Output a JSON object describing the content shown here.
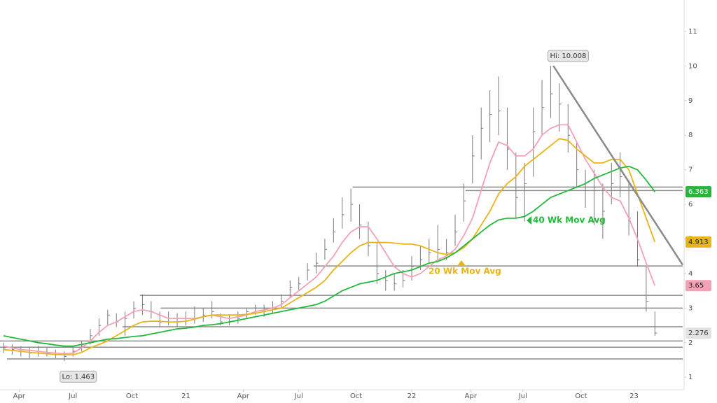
{
  "chart_data": {
    "type": "ohlc",
    "xlim": [
      -0.4,
      78.2
    ],
    "xticks": [
      {
        "value": 1.8,
        "label": "Apr"
      },
      {
        "value": 8,
        "label": "Jul"
      },
      {
        "value": 14.8,
        "label": "Oct"
      },
      {
        "value": 21,
        "label": "21"
      },
      {
        "value": 27.6,
        "label": "Apr"
      },
      {
        "value": 34,
        "label": "Jul"
      },
      {
        "value": 40.6,
        "label": "Oct"
      },
      {
        "value": 47,
        "label": "22"
      },
      {
        "value": 53.8,
        "label": "Apr"
      },
      {
        "value": 59.8,
        "label": "Jul"
      },
      {
        "value": 66.5,
        "label": "Oct"
      },
      {
        "value": 72.6,
        "label": "23"
      }
    ],
    "ylim": [
      0.64,
      11.91
    ],
    "yticks": [
      1,
      2,
      3,
      4,
      5,
      6,
      7,
      8,
      9,
      10,
      11
    ],
    "bar_color": "#7a7a7a",
    "high": [
      2.0,
      1.95,
      1.9,
      1.85,
      1.9,
      1.85,
      1.8,
      1.75,
      1.85,
      2.05,
      2.4,
      2.7,
      2.95,
      2.85,
      2.9,
      3.2,
      3.4,
      3.2,
      2.9,
      2.9,
      2.85,
      2.9,
      3.05,
      3.0,
      3.2,
      2.85,
      2.8,
      2.9,
      3.0,
      3.1,
      3.1,
      3.2,
      3.4,
      3.8,
      3.9,
      4.3,
      4.6,
      5.0,
      5.6,
      6.2,
      6.45,
      6.0,
      5.5,
      4.9,
      4.1,
      4.0,
      4.1,
      4.5,
      4.8,
      5.0,
      5.4,
      5.0,
      5.7,
      6.6,
      8.0,
      8.8,
      9.3,
      9.7,
      8.8,
      7.5,
      7.2,
      8.8,
      9.6,
      10.008,
      9.5,
      8.9,
      7.8,
      7.0,
      7.0,
      6.6,
      7.2,
      7.5,
      6.7,
      5.8,
      4.2,
      2.9
    ],
    "low": [
      1.7,
      1.65,
      1.6,
      1.55,
      1.6,
      1.6,
      1.55,
      1.463,
      1.6,
      1.75,
      1.95,
      2.2,
      2.5,
      2.45,
      2.2,
      2.7,
      2.8,
      2.7,
      2.45,
      2.5,
      2.45,
      2.5,
      2.55,
      2.6,
      2.7,
      2.5,
      2.5,
      2.55,
      2.7,
      2.8,
      2.75,
      2.85,
      3.0,
      3.3,
      3.5,
      3.8,
      4.0,
      4.4,
      4.9,
      5.3,
      5.5,
      5.0,
      4.5,
      3.7,
      3.5,
      3.5,
      3.6,
      3.8,
      4.1,
      4.3,
      4.4,
      4.4,
      4.8,
      5.5,
      6.6,
      7.3,
      7.8,
      8.0,
      7.0,
      5.6,
      5.5,
      6.8,
      8.0,
      8.5,
      8.1,
      7.5,
      6.5,
      5.9,
      5.4,
      5.0,
      6.0,
      6.2,
      5.1,
      4.2,
      2.9,
      2.2
    ],
    "close": [
      1.85,
      1.8,
      1.75,
      1.7,
      1.75,
      1.7,
      1.65,
      1.6,
      1.75,
      1.9,
      2.2,
      2.5,
      2.8,
      2.6,
      2.7,
      3.0,
      3.1,
      2.9,
      2.6,
      2.7,
      2.6,
      2.7,
      2.7,
      2.8,
      2.9,
      2.6,
      2.6,
      2.7,
      2.9,
      3.0,
      2.9,
      3.0,
      3.2,
      3.6,
      3.7,
      4.1,
      4.3,
      4.7,
      5.2,
      5.7,
      6.0,
      5.4,
      4.8,
      4.0,
      3.8,
      3.7,
      3.8,
      4.2,
      4.4,
      4.6,
      4.7,
      4.6,
      5.2,
      6.1,
      7.4,
      8.2,
      8.6,
      8.7,
      7.6,
      6.2,
      6.6,
      8.1,
      8.8,
      9.2,
      8.9,
      8.0,
      7.0,
      6.4,
      6.5,
      5.8,
      6.6,
      6.8,
      5.6,
      4.4,
      3.2,
      2.276
    ],
    "series": [
      {
        "color": "#f4a0b6",
        "values": [
          1.9,
          1.85,
          1.8,
          1.78,
          1.75,
          1.72,
          1.7,
          1.68,
          1.7,
          1.85,
          2.05,
          2.3,
          2.5,
          2.6,
          2.75,
          2.9,
          2.95,
          2.9,
          2.8,
          2.7,
          2.7,
          2.7,
          2.7,
          2.75,
          2.8,
          2.75,
          2.7,
          2.75,
          2.8,
          2.9,
          2.95,
          3.0,
          3.1,
          3.3,
          3.5,
          3.7,
          3.9,
          4.2,
          4.5,
          4.9,
          5.2,
          5.35,
          5.35,
          5.0,
          4.6,
          4.2,
          4.0,
          3.9,
          4.0,
          4.2,
          4.4,
          4.5,
          4.7,
          5.1,
          5.6,
          6.4,
          7.2,
          7.8,
          7.7,
          7.4,
          7.4,
          7.6,
          8.0,
          8.2,
          8.3,
          8.3,
          7.8,
          7.3,
          6.9,
          6.5,
          6.2,
          6.1,
          5.6,
          5.0,
          4.3,
          3.65
        ]
      },
      {
        "name": "20 Wk Mov Avg",
        "color": "#e9b418",
        "values": [
          1.8,
          1.78,
          1.75,
          1.72,
          1.7,
          1.68,
          1.66,
          1.65,
          1.65,
          1.72,
          1.85,
          1.95,
          2.05,
          2.2,
          2.35,
          2.5,
          2.6,
          2.62,
          2.62,
          2.6,
          2.6,
          2.62,
          2.68,
          2.75,
          2.8,
          2.8,
          2.8,
          2.8,
          2.82,
          2.85,
          2.9,
          2.95,
          3.0,
          3.15,
          3.3,
          3.45,
          3.6,
          3.8,
          4.1,
          4.35,
          4.6,
          4.8,
          4.9,
          4.9,
          4.9,
          4.88,
          4.85,
          4.85,
          4.8,
          4.7,
          4.6,
          4.55,
          4.6,
          4.75,
          5.0,
          5.4,
          5.8,
          6.3,
          6.6,
          6.8,
          7.1,
          7.3,
          7.5,
          7.7,
          7.9,
          7.85,
          7.6,
          7.4,
          7.2,
          7.2,
          7.3,
          7.3,
          7.0,
          6.3,
          5.6,
          4.913
        ]
      },
      {
        "name": "40 Wk Mov Avg",
        "color": "#22b83a",
        "values": [
          2.2,
          2.15,
          2.1,
          2.05,
          2.0,
          1.97,
          1.93,
          1.9,
          1.9,
          1.95,
          2.0,
          2.05,
          2.1,
          2.12,
          2.15,
          2.18,
          2.2,
          2.25,
          2.3,
          2.35,
          2.4,
          2.42,
          2.45,
          2.5,
          2.52,
          2.55,
          2.6,
          2.65,
          2.7,
          2.75,
          2.8,
          2.85,
          2.9,
          2.95,
          3.0,
          3.05,
          3.1,
          3.2,
          3.35,
          3.5,
          3.6,
          3.7,
          3.75,
          3.8,
          3.9,
          4.0,
          4.05,
          4.1,
          4.2,
          4.3,
          4.35,
          4.45,
          4.6,
          4.8,
          5.0,
          5.2,
          5.4,
          5.55,
          5.6,
          5.6,
          5.65,
          5.8,
          6.0,
          6.2,
          6.3,
          6.4,
          6.5,
          6.6,
          6.75,
          6.85,
          6.95,
          7.05,
          7.1,
          7.0,
          6.7,
          6.363
        ]
      }
    ],
    "levels": {
      "y": [
        6.5,
        6.4,
        4.22,
        3.37,
        3.0,
        2.46,
        2.05,
        1.87,
        1.53
      ],
      "x_start": [
        40.2,
        53.2,
        35.7,
        15.7,
        18.1,
        13.7,
        -0.4,
        -0.4,
        0.4
      ],
      "color": "#8a8a8a"
    },
    "trendline": {
      "x": [
        63.3,
        78.2
      ],
      "y": [
        10.008,
        4.25
      ],
      "color": "#8a8a8a"
    },
    "annotations": {
      "high_label": "Hi: 10.008",
      "low_label": "Lo: 1.463"
    }
  }
}
